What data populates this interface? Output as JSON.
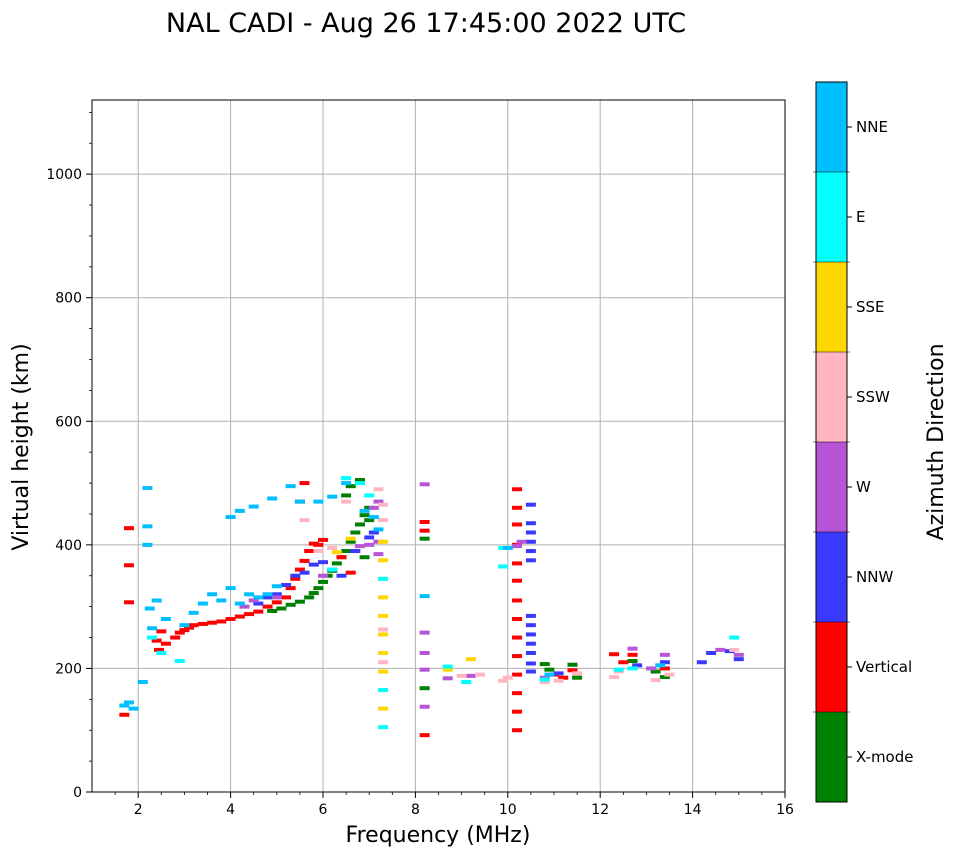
{
  "chart_data": {
    "type": "scatter",
    "title": "NAL CADI - Aug 26 17:45:00 2022 UTC",
    "xlabel": "Frequency (MHz)",
    "ylabel": "Virtual height (km)",
    "xlim": [
      1,
      16
    ],
    "ylim": [
      0,
      1120
    ],
    "xticks": [
      2,
      4,
      6,
      8,
      10,
      12,
      14,
      16
    ],
    "yticks": [
      0,
      200,
      400,
      600,
      800,
      1000
    ],
    "grid": true,
    "colorbar": {
      "label": "Azimuth Direction",
      "categories": [
        {
          "name": "X-mode",
          "color": "#008000"
        },
        {
          "name": "Vertical",
          "color": "#ff0000"
        },
        {
          "name": "NNW",
          "color": "#3a3aff"
        },
        {
          "name": "W",
          "color": "#b656d6"
        },
        {
          "name": "SSW",
          "color": "#ffb6c1"
        },
        {
          "name": "SSE",
          "color": "#ffd700"
        },
        {
          "name": "E",
          "color": "#00ffff"
        },
        {
          "name": "NNE",
          "color": "#00bfff"
        }
      ]
    },
    "series": [
      {
        "name": "X-mode",
        "points": [
          [
            4.9,
            293
          ],
          [
            5.1,
            297
          ],
          [
            5.3,
            303
          ],
          [
            5.5,
            308
          ],
          [
            5.7,
            315
          ],
          [
            5.8,
            322
          ],
          [
            5.9,
            330
          ],
          [
            6.0,
            340
          ],
          [
            6.1,
            350
          ],
          [
            6.2,
            358
          ],
          [
            6.3,
            370
          ],
          [
            6.4,
            380
          ],
          [
            6.5,
            390
          ],
          [
            6.6,
            405
          ],
          [
            6.7,
            420
          ],
          [
            6.8,
            433
          ],
          [
            6.9,
            448
          ],
          [
            7.0,
            460
          ],
          [
            6.5,
            480
          ],
          [
            6.6,
            495
          ],
          [
            6.8,
            505
          ],
          [
            6.9,
            380
          ],
          [
            7.0,
            440
          ],
          [
            8.2,
            410
          ],
          [
            8.2,
            168
          ],
          [
            10.8,
            207
          ],
          [
            10.9,
            198
          ],
          [
            11.4,
            206
          ],
          [
            11.5,
            185
          ],
          [
            12.7,
            212
          ],
          [
            13.2,
            195
          ],
          [
            13.4,
            186
          ]
        ]
      },
      {
        "name": "Vertical",
        "points": [
          [
            2.4,
            245
          ],
          [
            2.45,
            230
          ],
          [
            2.5,
            260
          ],
          [
            2.6,
            240
          ],
          [
            2.8,
            250
          ],
          [
            2.9,
            258
          ],
          [
            3.0,
            262
          ],
          [
            3.1,
            266
          ],
          [
            3.2,
            270
          ],
          [
            3.4,
            272
          ],
          [
            3.6,
            274
          ],
          [
            3.8,
            276
          ],
          [
            4.0,
            280
          ],
          [
            4.2,
            284
          ],
          [
            4.4,
            288
          ],
          [
            4.6,
            292
          ],
          [
            4.8,
            300
          ],
          [
            5.0,
            307
          ],
          [
            5.2,
            315
          ],
          [
            5.3,
            330
          ],
          [
            5.4,
            345
          ],
          [
            5.5,
            360
          ],
          [
            5.6,
            374
          ],
          [
            5.7,
            390
          ],
          [
            5.8,
            402
          ],
          [
            5.9,
            400
          ],
          [
            5.5,
            470
          ],
          [
            5.6,
            500
          ],
          [
            6.0,
            408
          ],
          [
            6.4,
            380
          ],
          [
            6.6,
            355
          ],
          [
            1.8,
            427
          ],
          [
            1.8,
            367
          ],
          [
            1.8,
            307
          ],
          [
            1.7,
            125
          ],
          [
            8.2,
            437
          ],
          [
            8.2,
            423
          ],
          [
            8.2,
            92
          ],
          [
            10.2,
            490
          ],
          [
            10.2,
            460
          ],
          [
            10.2,
            433
          ],
          [
            10.2,
            400
          ],
          [
            10.2,
            370
          ],
          [
            10.2,
            342
          ],
          [
            10.2,
            310
          ],
          [
            10.2,
            280
          ],
          [
            10.2,
            250
          ],
          [
            10.2,
            220
          ],
          [
            10.2,
            190
          ],
          [
            10.2,
            160
          ],
          [
            10.2,
            130
          ],
          [
            10.2,
            100
          ],
          [
            11.0,
            190
          ],
          [
            11.2,
            185
          ],
          [
            11.4,
            197
          ],
          [
            12.3,
            223
          ],
          [
            12.5,
            210
          ],
          [
            12.7,
            222
          ],
          [
            13.4,
            200
          ]
        ]
      },
      {
        "name": "NNW",
        "points": [
          [
            4.6,
            305
          ],
          [
            4.8,
            315
          ],
          [
            5.0,
            320
          ],
          [
            5.2,
            335
          ],
          [
            5.4,
            350
          ],
          [
            5.6,
            355
          ],
          [
            5.8,
            368
          ],
          [
            6.0,
            372
          ],
          [
            6.2,
            360
          ],
          [
            6.4,
            350
          ],
          [
            6.7,
            390
          ],
          [
            7.0,
            412
          ],
          [
            7.1,
            420
          ],
          [
            10.5,
            465
          ],
          [
            10.5,
            435
          ],
          [
            10.5,
            420
          ],
          [
            10.5,
            405
          ],
          [
            10.5,
            390
          ],
          [
            10.5,
            375
          ],
          [
            10.5,
            285
          ],
          [
            10.5,
            270
          ],
          [
            10.5,
            255
          ],
          [
            10.5,
            240
          ],
          [
            10.5,
            225
          ],
          [
            10.5,
            208
          ],
          [
            10.5,
            195
          ],
          [
            11.1,
            192
          ],
          [
            12.8,
            205
          ],
          [
            13.4,
            210
          ],
          [
            14.2,
            210
          ],
          [
            14.4,
            225
          ],
          [
            14.8,
            228
          ],
          [
            15.0,
            215
          ]
        ]
      },
      {
        "name": "W",
        "points": [
          [
            4.3,
            300
          ],
          [
            4.5,
            310
          ],
          [
            5.0,
            315
          ],
          [
            6.0,
            350
          ],
          [
            6.8,
            398
          ],
          [
            7.0,
            400
          ],
          [
            7.2,
            405
          ],
          [
            7.2,
            470
          ],
          [
            7.1,
            460
          ],
          [
            7.2,
            385
          ],
          [
            8.2,
            498
          ],
          [
            8.2,
            258
          ],
          [
            8.2,
            225
          ],
          [
            8.2,
            198
          ],
          [
            8.2,
            138
          ],
          [
            8.7,
            184
          ],
          [
            9.2,
            188
          ],
          [
            10.2,
            398
          ],
          [
            10.3,
            405
          ],
          [
            10.8,
            185
          ],
          [
            12.7,
            232
          ],
          [
            13.1,
            200
          ],
          [
            13.4,
            222
          ],
          [
            14.6,
            230
          ],
          [
            15.0,
            222
          ]
        ]
      },
      {
        "name": "SSW",
        "points": [
          [
            5.6,
            440
          ],
          [
            5.9,
            390
          ],
          [
            6.2,
            395
          ],
          [
            6.5,
            470
          ],
          [
            7.2,
            490
          ],
          [
            7.3,
            465
          ],
          [
            7.3,
            440
          ],
          [
            7.3,
            263
          ],
          [
            7.3,
            210
          ],
          [
            9.0,
            188
          ],
          [
            9.4,
            190
          ],
          [
            9.9,
            180
          ],
          [
            10.0,
            185
          ],
          [
            10.8,
            178
          ],
          [
            11.1,
            180
          ],
          [
            11.5,
            192
          ],
          [
            12.3,
            186
          ],
          [
            12.4,
            195
          ],
          [
            13.2,
            181
          ],
          [
            13.5,
            190
          ],
          [
            14.9,
            230
          ]
        ]
      },
      {
        "name": "SSE",
        "points": [
          [
            6.3,
            388
          ],
          [
            6.6,
            410
          ],
          [
            7.3,
            405
          ],
          [
            7.3,
            375
          ],
          [
            7.3,
            345
          ],
          [
            7.3,
            315
          ],
          [
            7.3,
            285
          ],
          [
            7.3,
            255
          ],
          [
            7.3,
            225
          ],
          [
            7.3,
            195
          ],
          [
            7.3,
            165
          ],
          [
            7.3,
            135
          ],
          [
            8.7,
            198
          ],
          [
            9.2,
            215
          ]
        ]
      },
      {
        "name": "E",
        "points": [
          [
            2.3,
            250
          ],
          [
            2.5,
            225
          ],
          [
            2.9,
            212
          ],
          [
            6.2,
            360
          ],
          [
            6.5,
            508
          ],
          [
            6.8,
            500
          ],
          [
            7.0,
            480
          ],
          [
            7.3,
            345
          ],
          [
            7.3,
            165
          ],
          [
            7.3,
            105
          ],
          [
            8.7,
            203
          ],
          [
            9.1,
            178
          ],
          [
            9.9,
            395
          ],
          [
            9.9,
            365
          ],
          [
            10.8,
            182
          ],
          [
            12.4,
            198
          ],
          [
            12.7,
            200
          ],
          [
            14.9,
            250
          ]
        ]
      },
      {
        "name": "NNE",
        "points": [
          [
            1.7,
            140
          ],
          [
            1.8,
            145
          ],
          [
            1.9,
            135
          ],
          [
            2.1,
            178
          ],
          [
            2.2,
            492
          ],
          [
            2.2,
            430
          ],
          [
            2.2,
            400
          ],
          [
            2.25,
            297
          ],
          [
            2.3,
            265
          ],
          [
            2.4,
            310
          ],
          [
            2.6,
            280
          ],
          [
            3.0,
            270
          ],
          [
            3.2,
            290
          ],
          [
            3.4,
            305
          ],
          [
            3.6,
            320
          ],
          [
            3.8,
            310
          ],
          [
            4.0,
            330
          ],
          [
            4.2,
            305
          ],
          [
            4.4,
            320
          ],
          [
            4.6,
            315
          ],
          [
            4.8,
            320
          ],
          [
            5.0,
            333
          ],
          [
            4.0,
            445
          ],
          [
            4.2,
            455
          ],
          [
            4.5,
            462
          ],
          [
            4.9,
            475
          ],
          [
            5.3,
            495
          ],
          [
            5.5,
            470
          ],
          [
            5.9,
            470
          ],
          [
            6.2,
            478
          ],
          [
            6.5,
            500
          ],
          [
            6.9,
            455
          ],
          [
            7.1,
            445
          ],
          [
            7.2,
            425
          ],
          [
            8.2,
            317
          ],
          [
            10.0,
            395
          ],
          [
            10.9,
            190
          ],
          [
            13.3,
            205
          ]
        ]
      }
    ]
  }
}
